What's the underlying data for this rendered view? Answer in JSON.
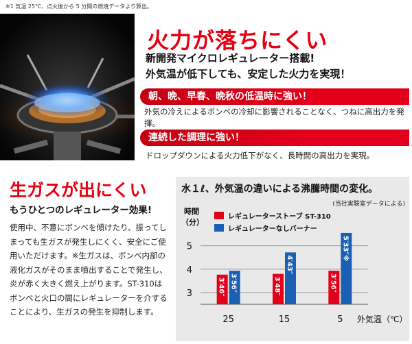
{
  "footnote": "※1 気温 25℃、点火後から 5 分間の燃焼データより算出。",
  "top": {
    "headline": "火力が落ちにくい",
    "sub_line1": "新開発マイクロレギュレーター搭載!",
    "sub_line2": "外気温が低下しても、安定した火力を実現！",
    "section1": {
      "ribbon": "朝、晩、早春、晩秋の低温時に強い！",
      "body": "外気の冷えによるボンベの冷却に影響されることなく、つねに高出力を発揮。"
    },
    "section2": {
      "ribbon": "連続した調理に強い！",
      "body": "ドロップダウンによる火力低下がなく、長時間の高出力を実現。"
    }
  },
  "gas": {
    "title": "生ガスが出にくい",
    "subtitle": "もうひとつのレギュレーター効果!",
    "paragraph": "使用中、不意にボンベを傾けたり、振ってしまっても生ガスが発生しにくく、安全にご使用いただけます。※生ガスは、ボンベ内部の液化ガスがそのまま噴出することで発生し、炎が赤く大きく燃え上がります。ST-310はボンベと火口の間にレギュレーターを介することにより、生ガスの発生を抑制します。"
  },
  "colors": {
    "red": "#e2001a",
    "blue": "#1a5fb4",
    "chart_bg": "#e9e9e9"
  },
  "chart_data": {
    "type": "bar",
    "title": "水１ℓ、外気温の違いによる沸騰時間の変化。",
    "note": "(当社実験室データによる)",
    "ylabel_line1": "時間",
    "ylabel_line2": "（分）",
    "xlabel": "外気温（℃）",
    "categories": [
      "25",
      "15",
      "5"
    ],
    "ylim": [
      2.5,
      5.9
    ],
    "yticks": [
      3,
      4,
      5
    ],
    "series": [
      {
        "name": "レギュレーターストーブ ST-310",
        "color": "#e2001a",
        "values": [
          3.767,
          3.8,
          3.933
        ],
        "labels": [
          "3′46″",
          "3′48″",
          "3′56″"
        ]
      },
      {
        "name": "レギュレーターなしバーナー",
        "color": "#1a5fb4",
        "values": [
          3.933,
          4.717,
          5.55
        ],
        "labels": [
          "3′56″",
          "4′43″",
          "5′33″※"
        ]
      }
    ]
  }
}
